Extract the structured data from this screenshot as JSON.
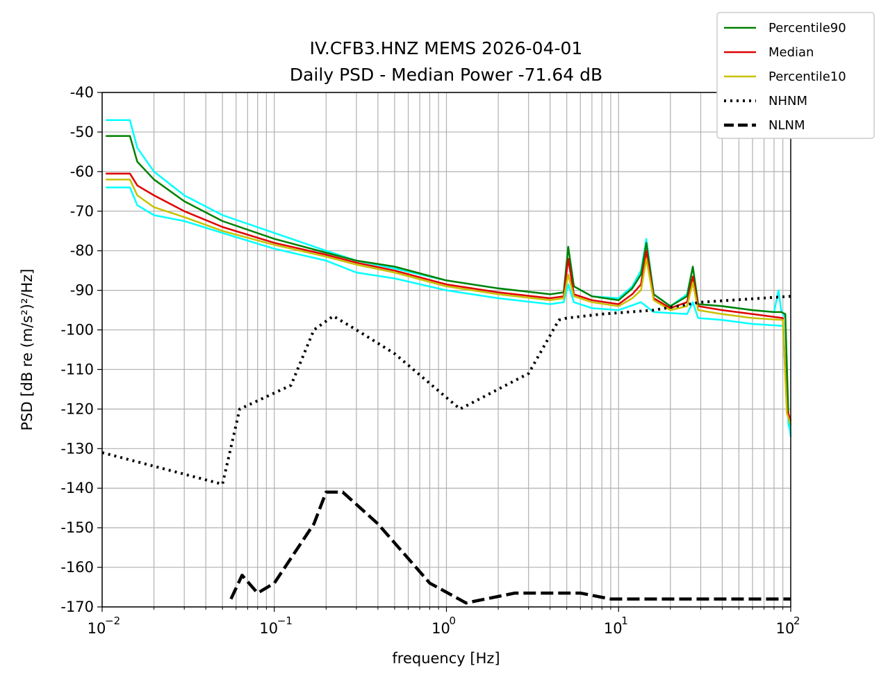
{
  "chart_data": {
    "type": "line",
    "title_line1": "IV.CFB3.HNZ MEMS 2026-04-01",
    "title_line2": "Daily PSD - Median Power -71.64 dB",
    "xlabel": "frequency [Hz]",
    "ylabel": "PSD [dB re (m/s²)²/Hz]",
    "xscale": "log",
    "xlim": [
      0.01,
      100
    ],
    "ylim": [
      -170,
      -40
    ],
    "yticks": [
      -40,
      -50,
      -60,
      -70,
      -80,
      -90,
      -100,
      -110,
      -120,
      -130,
      -140,
      -150,
      -160,
      -170
    ],
    "xticks": [
      {
        "value": 0.01,
        "base": "10",
        "exp": "−2"
      },
      {
        "value": 0.1,
        "base": "10",
        "exp": "−1"
      },
      {
        "value": 1,
        "base": "10",
        "exp": "0"
      },
      {
        "value": 10,
        "base": "10",
        "exp": "1"
      },
      {
        "value": 100,
        "base": "10",
        "exp": "2"
      }
    ],
    "grid": true,
    "legend_position": "top-right",
    "series": [
      {
        "name": "",
        "color": "#00ffff",
        "style": "solid",
        "x": [
          0.0105,
          0.0145,
          0.016,
          0.02,
          0.03,
          0.05,
          0.1,
          0.2,
          0.3,
          0.5,
          1,
          2,
          4,
          4.8,
          5.1,
          5.5,
          7,
          10,
          12,
          13.5,
          14.5,
          16,
          20,
          25,
          27,
          29,
          40,
          60,
          80,
          85,
          88,
          93,
          97,
          100
        ],
        "y": [
          -47,
          -47,
          -54,
          -60,
          -66,
          -71,
          -75.5,
          -80,
          -82.5,
          -84.5,
          -87.5,
          -89.5,
          -91,
          -90.5,
          -79,
          -89,
          -91.5,
          -92,
          -89,
          -85,
          -77,
          -91,
          -94,
          -91,
          -84,
          -93.5,
          -94,
          -95,
          -95.5,
          -90,
          -95,
          -97,
          -124,
          -126
        ]
      },
      {
        "name": "",
        "color": "#00ffff",
        "style": "solid",
        "x": [
          0.0105,
          0.0145,
          0.016,
          0.02,
          0.03,
          0.05,
          0.1,
          0.2,
          0.3,
          0.5,
          1,
          2,
          4,
          4.8,
          5.1,
          5.5,
          7,
          10,
          13.5,
          16,
          25,
          27,
          29,
          40,
          60,
          90,
          95,
          100
        ],
        "y": [
          -64,
          -64,
          -68.5,
          -71,
          -72.5,
          -75.5,
          -79.5,
          -82.5,
          -85.5,
          -87,
          -90,
          -92,
          -93.5,
          -93,
          -88.5,
          -93,
          -94.5,
          -95,
          -93,
          -95.5,
          -96,
          -93,
          -97,
          -97.5,
          -98.5,
          -99,
          -118,
          -127
        ]
      },
      {
        "name": "Percentile90",
        "color": "#008000",
        "style": "solid",
        "x": [
          0.0105,
          0.0145,
          0.016,
          0.02,
          0.03,
          0.05,
          0.1,
          0.2,
          0.3,
          0.5,
          1,
          2,
          4,
          4.8,
          5.1,
          5.5,
          7,
          10,
          12,
          13.5,
          14.5,
          16,
          20,
          25,
          27,
          29,
          40,
          60,
          80,
          88,
          93,
          97,
          100
        ],
        "y": [
          -51,
          -51,
          -57.5,
          -62,
          -67.5,
          -72.5,
          -77,
          -80.5,
          -82.5,
          -84,
          -87.5,
          -89.5,
          -91,
          -90.5,
          -79,
          -89,
          -91.5,
          -92.5,
          -89.5,
          -86,
          -78,
          -91,
          -94,
          -91.5,
          -84,
          -93.5,
          -94,
          -95,
          -95.5,
          -95.5,
          -96,
          -122,
          -124
        ]
      },
      {
        "name": "Median",
        "color": "#e00000",
        "style": "solid",
        "x": [
          0.0105,
          0.0145,
          0.016,
          0.02,
          0.03,
          0.05,
          0.1,
          0.2,
          0.3,
          0.5,
          1,
          2,
          4,
          4.8,
          5.1,
          5.5,
          7,
          10,
          12,
          13.5,
          14.5,
          16,
          20,
          25,
          27,
          29,
          40,
          60,
          90,
          95,
          100
        ],
        "y": [
          -60.5,
          -60.5,
          -63.5,
          -66,
          -70,
          -74,
          -78,
          -81,
          -83,
          -85,
          -88.5,
          -90.5,
          -92,
          -91.5,
          -82,
          -91,
          -92.5,
          -93.5,
          -91,
          -88.5,
          -80,
          -92,
          -94.5,
          -93,
          -86.5,
          -94,
          -95,
          -96,
          -97,
          -120,
          -123
        ]
      },
      {
        "name": "Percentile10",
        "color": "#c8c000",
        "style": "solid",
        "x": [
          0.0105,
          0.0145,
          0.016,
          0.02,
          0.03,
          0.05,
          0.1,
          0.2,
          0.3,
          0.5,
          1,
          2,
          4,
          4.8,
          5.1,
          5.5,
          7,
          10,
          12,
          13.5,
          14.5,
          16,
          20,
          25,
          27,
          29,
          40,
          60,
          90,
          95,
          100
        ],
        "y": [
          -62,
          -62,
          -66,
          -69,
          -71.5,
          -75,
          -78.5,
          -81.5,
          -83.5,
          -85.5,
          -89,
          -91,
          -92.5,
          -92,
          -86,
          -91.5,
          -93,
          -94,
          -92,
          -90,
          -82,
          -92.5,
          -95,
          -94,
          -88,
          -95,
          -96,
          -97,
          -97.5,
          -121,
          -124
        ]
      },
      {
        "name": "NHNM",
        "color": "#000000",
        "style": "dotted",
        "x": [
          0.01,
          0.05,
          0.063,
          0.125,
          0.17,
          0.22,
          0.3,
          0.5,
          1.2,
          3,
          4.5,
          5,
          8,
          16,
          30,
          100
        ],
        "y": [
          -131,
          -139,
          -120,
          -114,
          -100,
          -96.5,
          -100,
          -106,
          -120,
          -111,
          -97.5,
          -97,
          -96,
          -95,
          -93,
          -91.5
        ]
      },
      {
        "name": "NLNM",
        "color": "#000000",
        "style": "dashed",
        "x": [
          0.056,
          0.065,
          0.08,
          0.1,
          0.17,
          0.2,
          0.25,
          0.4,
          0.8,
          1.3,
          2.5,
          6,
          9,
          100
        ],
        "y": [
          -168,
          -162,
          -166.5,
          -164,
          -149,
          -141,
          -141,
          -149,
          -164,
          -169,
          -166.5,
          -166.5,
          -168,
          -168
        ]
      }
    ]
  }
}
